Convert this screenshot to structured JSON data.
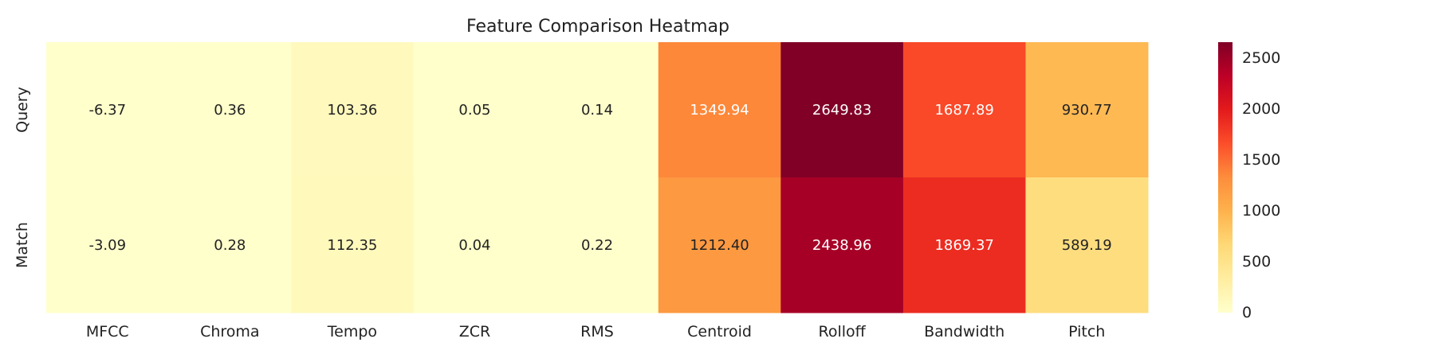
{
  "chart_data": {
    "type": "heatmap",
    "title": "Feature Comparison Heatmap",
    "rows": [
      "Query",
      "Match"
    ],
    "columns": [
      "MFCC",
      "Chroma",
      "Tempo",
      "ZCR",
      "RMS",
      "Centroid",
      "Rolloff",
      "Bandwidth",
      "Pitch"
    ],
    "values": [
      [
        -6.37,
        0.36,
        103.36,
        0.05,
        0.14,
        1349.94,
        2649.83,
        1687.89,
        930.77
      ],
      [
        -3.09,
        0.28,
        112.35,
        0.04,
        0.22,
        1212.4,
        2438.96,
        1869.37,
        589.19
      ]
    ],
    "value_labels": [
      [
        "-6.37",
        "0.36",
        "103.36",
        "0.05",
        "0.14",
        "1349.94",
        "2649.83",
        "1687.89",
        "930.77"
      ],
      [
        "-3.09",
        "0.28",
        "112.35",
        "0.04",
        "0.22",
        "1212.40",
        "2438.96",
        "1869.37",
        "589.19"
      ]
    ],
    "colorbar": {
      "min": -6.37,
      "max": 2649.83,
      "ticks": [
        0,
        500,
        1000,
        1500,
        2000,
        2500
      ],
      "tick_labels": [
        "0",
        "500",
        "1000",
        "1500",
        "2000",
        "2500"
      ]
    },
    "colormap": "YlOrRd",
    "colormap_stops": [
      "#ffffcc",
      "#ffeda0",
      "#fed976",
      "#feb24c",
      "#fd8d3c",
      "#fc4e2a",
      "#e31a1c",
      "#bd0026",
      "#800026"
    ],
    "xlabel": "",
    "ylabel": ""
  }
}
